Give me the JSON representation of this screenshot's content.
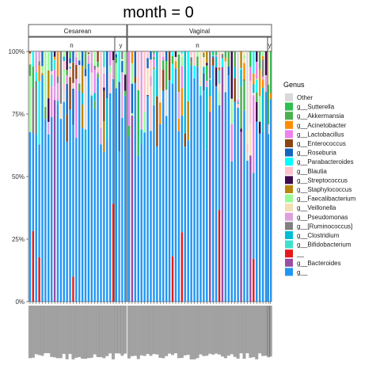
{
  "chart_data": {
    "type": "bar",
    "stacked": true,
    "title": "month = 0",
    "xlabel": "",
    "ylabel": "",
    "ylim": [
      0,
      1
    ],
    "ytick_labels": [
      "0%",
      "25%",
      "50%",
      "75%",
      "100%"
    ],
    "yticks": [
      0,
      0.25,
      0.5,
      0.75,
      1.0
    ],
    "grid": false,
    "legend_position": "right",
    "facets": [
      {
        "label": "Cesarean",
        "subfacets": [
          {
            "label": "n",
            "samples": 28
          },
          {
            "label": "y",
            "samples": 4
          }
        ]
      },
      {
        "label": "Vaginal",
        "subfacets": [
          {
            "label": "n",
            "samples": 45
          },
          {
            "label": "y",
            "samples": 2
          }
        ]
      }
    ],
    "x_tick_labels_note": "sample IDs, too small to read",
    "legend": {
      "title": "Genus",
      "items": [
        {
          "name": "Other",
          "color": "#d9d9d9"
        },
        {
          "name": "g__Sutterella",
          "color": "#2fbf4f"
        },
        {
          "name": "g__Akkermansia",
          "color": "#4caf50"
        },
        {
          "name": "g__Acinetobacter",
          "color": "#ff8c00"
        },
        {
          "name": "g__Lactobacillus",
          "color": "#ee82ee"
        },
        {
          "name": "g__Enterococcus",
          "color": "#8b4513"
        },
        {
          "name": "g__Roseburia",
          "color": "#1565c0"
        },
        {
          "name": "g__Parabacteroides",
          "color": "#00ffff"
        },
        {
          "name": "g__Blautia",
          "color": "#ffc0cb"
        },
        {
          "name": "g__Streptococcus",
          "color": "#3f0a4d"
        },
        {
          "name": "g__Staphylococcus",
          "color": "#b8860b"
        },
        {
          "name": "g__Faecalibacterium",
          "color": "#98fb98"
        },
        {
          "name": "g__Veillonella",
          "color": "#f5deb3"
        },
        {
          "name": "g__Pseudomonas",
          "color": "#dda0dd"
        },
        {
          "name": "g__[Ruminococcus]",
          "color": "#808080"
        },
        {
          "name": "g__Clostridium",
          "color": "#00bcd4"
        },
        {
          "name": "g__Bifidobacterium",
          "color": "#40e0d0"
        },
        {
          "name": "__",
          "color": "#e41a1c"
        },
        {
          "name": "g__Bacteroides",
          "color": "#984ea3"
        },
        {
          "name": "g__",
          "color": "#2196f3"
        }
      ]
    }
  }
}
